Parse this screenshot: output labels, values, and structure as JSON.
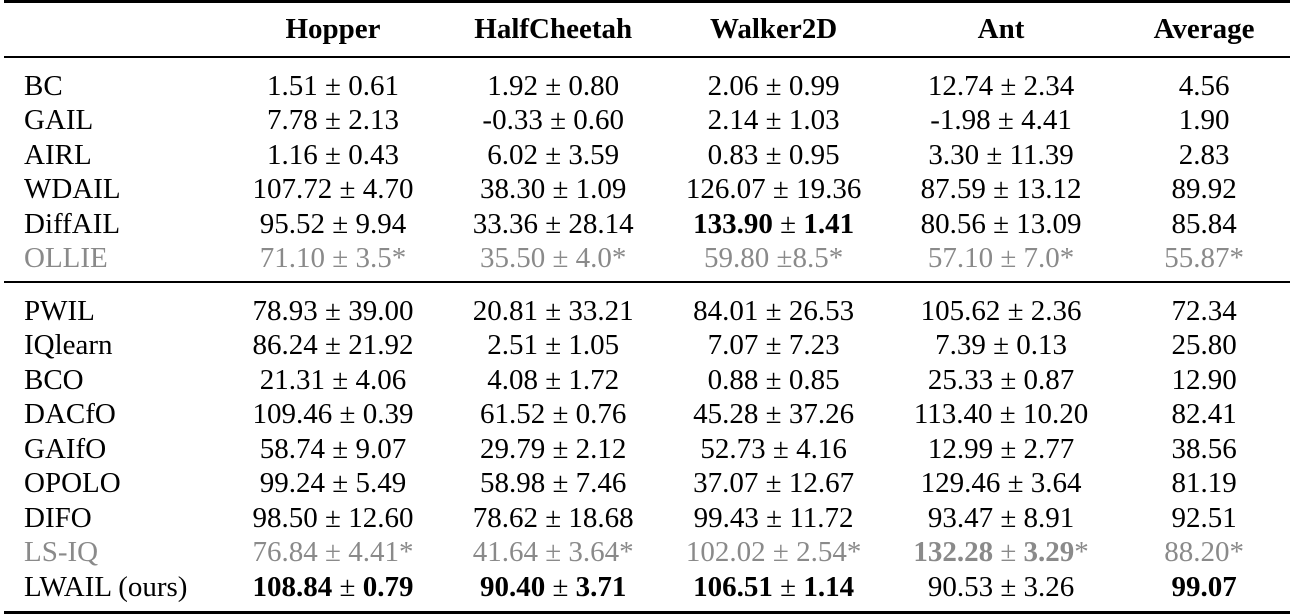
{
  "table": {
    "columns": [
      "",
      "Hopper",
      "HalfCheetah",
      "Walker2D",
      "Ant",
      "Average"
    ],
    "gray_color": "#8a8a8a",
    "groups": [
      {
        "rows": [
          {
            "method": "BC",
            "gray": false,
            "cells": [
              {
                "mean": "1.51",
                "pm": "±",
                "std": "0.61",
                "bold": false
              },
              {
                "mean": "1.92",
                "pm": "±",
                "std": "0.80",
                "bold": false
              },
              {
                "mean": "2.06",
                "pm": "±",
                "std": "0.99",
                "bold": false
              },
              {
                "mean": "12.74",
                "pm": "±",
                "std": "2.34",
                "bold": false
              }
            ],
            "average": "4.56",
            "average_bold": false
          },
          {
            "method": "GAIL",
            "gray": false,
            "cells": [
              {
                "mean": "7.78",
                "pm": "±",
                "std": "2.13",
                "bold": false
              },
              {
                "mean": "-0.33",
                "pm": "±",
                "std": "0.60",
                "bold": false
              },
              {
                "mean": "2.14",
                "pm": "±",
                "std": "1.03",
                "bold": false
              },
              {
                "mean": "-1.98",
                "pm": "±",
                "std": "4.41",
                "bold": false
              }
            ],
            "average": "1.90",
            "average_bold": false
          },
          {
            "method": "AIRL",
            "gray": false,
            "cells": [
              {
                "mean": "1.16",
                "pm": "±",
                "std": "0.43",
                "bold": false
              },
              {
                "mean": "6.02",
                "pm": "±",
                "std": "3.59",
                "bold": false
              },
              {
                "mean": "0.83",
                "pm": "±",
                "std": "0.95",
                "bold": false
              },
              {
                "mean": "3.30",
                "pm": "±",
                "std": "11.39",
                "bold": false
              }
            ],
            "average": "2.83",
            "average_bold": false
          },
          {
            "method": "WDAIL",
            "gray": false,
            "cells": [
              {
                "mean": "107.72",
                "pm": "±",
                "std": "4.70",
                "bold": false
              },
              {
                "mean": "38.30",
                "pm": "±",
                "std": "1.09",
                "bold": false
              },
              {
                "mean": "126.07",
                "pm": "±",
                "std": "19.36",
                "bold": false
              },
              {
                "mean": "87.59",
                "pm": "±",
                "std": "13.12",
                "bold": false
              }
            ],
            "average": "89.92",
            "average_bold": false
          },
          {
            "method": "DiffAIL",
            "gray": false,
            "cells": [
              {
                "mean": "95.52",
                "pm": "±",
                "std": "9.94",
                "bold": false
              },
              {
                "mean": "33.36",
                "pm": "±",
                "std": "28.14",
                "bold": false
              },
              {
                "mean": "133.90",
                "pm": "±",
                "std": "1.41",
                "bold": true
              },
              {
                "mean": "80.56",
                "pm": "±",
                "std": "13.09",
                "bold": false
              }
            ],
            "average": "85.84",
            "average_bold": false
          },
          {
            "method": "OLLIE",
            "gray": true,
            "cells": [
              {
                "mean": "71.10",
                "pm": "±",
                "std": "3.5*",
                "bold": false
              },
              {
                "mean": "35.50",
                "pm": "±",
                "std": "4.0*",
                "bold": false
              },
              {
                "mean": "59.80",
                "pm": "±",
                "std": "8.5*",
                "bold": false,
                "tight": true
              },
              {
                "mean": "57.10",
                "pm": "±",
                "std": "7.0*",
                "bold": false
              }
            ],
            "average": "55.87*",
            "average_bold": false
          }
        ]
      },
      {
        "rows": [
          {
            "method": "PWIL",
            "gray": false,
            "cells": [
              {
                "mean": "78.93",
                "pm": "±",
                "std": "39.00",
                "bold": false
              },
              {
                "mean": "20.81",
                "pm": "±",
                "std": "33.21",
                "bold": false
              },
              {
                "mean": "84.01",
                "pm": "±",
                "std": "26.53",
                "bold": false
              },
              {
                "mean": "105.62",
                "pm": "±",
                "std": "2.36",
                "bold": false
              }
            ],
            "average": "72.34",
            "average_bold": false
          },
          {
            "method": "IQlearn",
            "gray": false,
            "cells": [
              {
                "mean": "86.24",
                "pm": "±",
                "std": "21.92",
                "bold": false
              },
              {
                "mean": "2.51",
                "pm": "±",
                "std": "1.05",
                "bold": false
              },
              {
                "mean": "7.07",
                "pm": "±",
                "std": "7.23",
                "bold": false
              },
              {
                "mean": "7.39",
                "pm": "±",
                "std": "0.13",
                "bold": false
              }
            ],
            "average": "25.80",
            "average_bold": false
          },
          {
            "method": "BCO",
            "gray": false,
            "cells": [
              {
                "mean": "21.31",
                "pm": "±",
                "std": "4.06",
                "bold": false
              },
              {
                "mean": "4.08",
                "pm": "±",
                "std": "1.72",
                "bold": false
              },
              {
                "mean": "0.88",
                "pm": "±",
                "std": "0.85",
                "bold": false
              },
              {
                "mean": "25.33",
                "pm": "±",
                "std": "0.87",
                "bold": false
              }
            ],
            "average": "12.90",
            "average_bold": false
          },
          {
            "method": "DACfO",
            "gray": false,
            "cells": [
              {
                "mean": "109.46",
                "pm": "±",
                "std": "0.39",
                "bold": false
              },
              {
                "mean": "61.52",
                "pm": "±",
                "std": "0.76",
                "bold": false
              },
              {
                "mean": "45.28",
                "pm": "±",
                "std": "37.26",
                "bold": false
              },
              {
                "mean": "113.40",
                "pm": "±",
                "std": "10.20",
                "bold": false
              }
            ],
            "average": "82.41",
            "average_bold": false
          },
          {
            "method": "GAIfO",
            "gray": false,
            "cells": [
              {
                "mean": "58.74",
                "pm": "±",
                "std": "9.07",
                "bold": false
              },
              {
                "mean": "29.79",
                "pm": "±",
                "std": "2.12",
                "bold": false
              },
              {
                "mean": "52.73",
                "pm": "±",
                "std": "4.16",
                "bold": false
              },
              {
                "mean": "12.99",
                "pm": "±",
                "std": "2.77",
                "bold": false
              }
            ],
            "average": "38.56",
            "average_bold": false
          },
          {
            "method": "OPOLO",
            "gray": false,
            "cells": [
              {
                "mean": "99.24",
                "pm": "±",
                "std": "5.49",
                "bold": false
              },
              {
                "mean": "58.98",
                "pm": "±",
                "std": "7.46",
                "bold": false
              },
              {
                "mean": "37.07",
                "pm": "±",
                "std": "12.67",
                "bold": false
              },
              {
                "mean": "129.46",
                "pm": "±",
                "std": "3.64",
                "bold": false
              }
            ],
            "average": "81.19",
            "average_bold": false
          },
          {
            "method": "DIFO",
            "gray": false,
            "cells": [
              {
                "mean": "98.50",
                "pm": "±",
                "std": "12.60",
                "bold": false
              },
              {
                "mean": "78.62",
                "pm": "±",
                "std": "18.68",
                "bold": false
              },
              {
                "mean": "99.43",
                "pm": "±",
                "std": "11.72",
                "bold": false
              },
              {
                "mean": "93.47",
                "pm": "±",
                "std": "8.91",
                "bold": false
              }
            ],
            "average": "92.51",
            "average_bold": false
          },
          {
            "method": "LS-IQ",
            "gray": true,
            "cells": [
              {
                "mean": "76.84",
                "pm": "±",
                "std": "4.41*",
                "bold": false
              },
              {
                "mean": "41.64",
                "pm": "±",
                "std": "3.64*",
                "bold": false
              },
              {
                "mean": "102.02",
                "pm": "±",
                "std": "2.54*",
                "bold": false
              },
              {
                "mean": "132.28",
                "pm": "±",
                "std": "3.29",
                "std_suffix": "*",
                "bold": true
              }
            ],
            "average": "88.20*",
            "average_bold": false
          },
          {
            "method": "LWAIL (ours)",
            "gray": false,
            "cells": [
              {
                "mean": "108.84",
                "pm": "±",
                "std": "0.79",
                "bold": true
              },
              {
                "mean": "90.40",
                "pm": "±",
                "std": "3.71",
                "bold": true
              },
              {
                "mean": "106.51",
                "pm": "±",
                "std": "1.14",
                "bold": true
              },
              {
                "mean": "90.53",
                "pm": "±",
                "std": "3.26",
                "bold": false
              }
            ],
            "average": "99.07",
            "average_bold": true
          }
        ]
      }
    ]
  }
}
